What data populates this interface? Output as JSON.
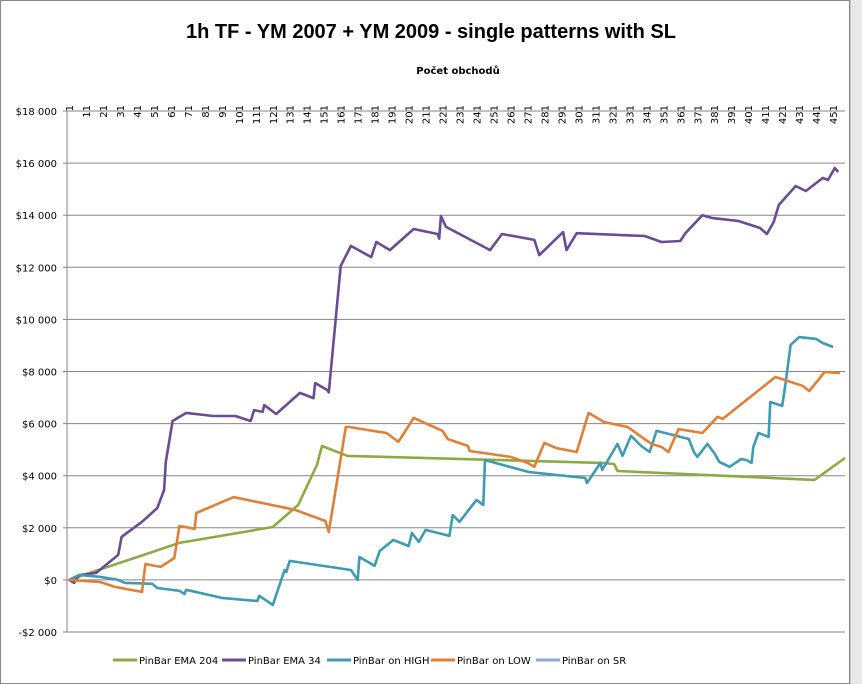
{
  "chart_data": {
    "type": "line",
    "title": "1h TF - YM 2007 + YM 2009 - single patterns with SL",
    "xlabel": "Počet obchodů",
    "ylabel": "",
    "x_axis_position": "top",
    "xlim": [
      1,
      459
    ],
    "x_ticks": [
      1,
      11,
      21,
      31,
      41,
      51,
      61,
      71,
      81,
      91,
      101,
      111,
      121,
      131,
      141,
      151,
      161,
      171,
      181,
      191,
      201,
      211,
      221,
      231,
      241,
      251,
      261,
      271,
      281,
      291,
      301,
      311,
      321,
      331,
      341,
      351,
      361,
      371,
      381,
      391,
      401,
      411,
      421,
      431,
      441,
      451
    ],
    "ylim": [
      -2000,
      18000
    ],
    "y_ticks": [
      -2000,
      0,
      2000,
      4000,
      6000,
      8000,
      10000,
      12000,
      14000,
      16000,
      18000
    ],
    "y_tick_labels": [
      "-$2 000",
      "$0",
      "$2 000",
      "$4 000",
      "$6 000",
      "$8 000",
      "$10 000",
      "$12 000",
      "$14 000",
      "$16 000",
      "$18 000"
    ],
    "negative_color": "#ff0000",
    "grid": "horizontal",
    "legend_position": "bottom",
    "series": [
      {
        "name": "PinBar EMA 204",
        "color": "#8bab45",
        "points": [
          [
            1,
            0
          ],
          [
            66,
            1420
          ],
          [
            121,
            2030
          ],
          [
            136,
            2880
          ],
          [
            147,
            4410
          ],
          [
            150,
            5140
          ],
          [
            165,
            4760
          ],
          [
            315,
            4490
          ],
          [
            322,
            4450
          ],
          [
            324,
            4180
          ],
          [
            440,
            3840
          ],
          [
            458,
            4680
          ]
        ]
      },
      {
        "name": "PinBar EMA 34",
        "color": "#6a4c93",
        "points": [
          [
            1,
            0
          ],
          [
            4,
            -115
          ],
          [
            7,
            190
          ],
          [
            17,
            270
          ],
          [
            30,
            960
          ],
          [
            32,
            1650
          ],
          [
            44,
            2230
          ],
          [
            53,
            2760
          ],
          [
            57,
            3450
          ],
          [
            58,
            4530
          ],
          [
            62,
            6100
          ],
          [
            70,
            6410
          ],
          [
            86,
            6290
          ],
          [
            99,
            6290
          ],
          [
            108,
            6100
          ],
          [
            110,
            6520
          ],
          [
            115,
            6450
          ],
          [
            116,
            6710
          ],
          [
            123,
            6370
          ],
          [
            137,
            7180
          ],
          [
            145,
            6980
          ],
          [
            146,
            7560
          ],
          [
            153,
            7290
          ],
          [
            154,
            7200
          ],
          [
            161,
            12050
          ],
          [
            167,
            12820
          ],
          [
            179,
            12390
          ],
          [
            182,
            12970
          ],
          [
            190,
            12660
          ],
          [
            204,
            13470
          ],
          [
            218,
            13280
          ],
          [
            219,
            13100
          ],
          [
            220,
            13970
          ],
          [
            223,
            13550
          ],
          [
            249,
            12660
          ],
          [
            256,
            13280
          ],
          [
            275,
            13050
          ],
          [
            278,
            12470
          ],
          [
            292,
            13350
          ],
          [
            294,
            12660
          ],
          [
            300,
            13310
          ],
          [
            340,
            13200
          ],
          [
            350,
            12970
          ],
          [
            361,
            13010
          ],
          [
            364,
            13310
          ],
          [
            374,
            14000
          ],
          [
            380,
            13890
          ],
          [
            395,
            13780
          ],
          [
            408,
            13510
          ],
          [
            412,
            13280
          ],
          [
            416,
            13740
          ],
          [
            419,
            14390
          ],
          [
            429,
            15120
          ],
          [
            435,
            14930
          ],
          [
            445,
            15430
          ],
          [
            448,
            15350
          ],
          [
            452,
            15810
          ],
          [
            454,
            15660
          ]
        ]
      },
      {
        "name": "PinBar on HIGH",
        "color": "#3f9bb1",
        "points": [
          [
            1,
            0
          ],
          [
            7,
            190
          ],
          [
            19,
            120
          ],
          [
            30,
            0
          ],
          [
            34,
            -115
          ],
          [
            50,
            -150
          ],
          [
            53,
            -310
          ],
          [
            66,
            -420
          ],
          [
            69,
            -540
          ],
          [
            70,
            -380
          ],
          [
            91,
            -690
          ],
          [
            112,
            -810
          ],
          [
            113,
            -610
          ],
          [
            121,
            -960
          ],
          [
            128,
            380
          ],
          [
            129,
            300
          ],
          [
            131,
            730
          ],
          [
            167,
            380
          ],
          [
            171,
            0
          ],
          [
            172,
            880
          ],
          [
            181,
            540
          ],
          [
            184,
            1110
          ],
          [
            192,
            1530
          ],
          [
            201,
            1300
          ],
          [
            203,
            1800
          ],
          [
            207,
            1460
          ],
          [
            211,
            1920
          ],
          [
            225,
            1690
          ],
          [
            227,
            2490
          ],
          [
            231,
            2230
          ],
          [
            241,
            3070
          ],
          [
            245,
            2880
          ],
          [
            246,
            4600
          ],
          [
            272,
            4140
          ],
          [
            305,
            3910
          ],
          [
            306,
            3720
          ],
          [
            314,
            4490
          ],
          [
            315,
            4220
          ],
          [
            324,
            5220
          ],
          [
            327,
            4760
          ],
          [
            332,
            5530
          ],
          [
            338,
            5140
          ],
          [
            343,
            4910
          ],
          [
            347,
            5720
          ],
          [
            357,
            5560
          ],
          [
            366,
            5410
          ],
          [
            369,
            4910
          ],
          [
            371,
            4720
          ],
          [
            377,
            5220
          ],
          [
            381,
            4870
          ],
          [
            384,
            4530
          ],
          [
            390,
            4340
          ],
          [
            397,
            4640
          ],
          [
            400,
            4600
          ],
          [
            403,
            4490
          ],
          [
            404,
            5100
          ],
          [
            407,
            5640
          ],
          [
            413,
            5490
          ],
          [
            414,
            6830
          ],
          [
            421,
            6680
          ],
          [
            423,
            7560
          ],
          [
            426,
            9020
          ],
          [
            431,
            9320
          ],
          [
            441,
            9250
          ],
          [
            445,
            9090
          ],
          [
            451,
            8940
          ]
        ]
      },
      {
        "name": "PinBar on LOW",
        "color": "#e07f35",
        "points": [
          [
            1,
            0
          ],
          [
            19,
            -80
          ],
          [
            21,
            -115
          ],
          [
            28,
            -270
          ],
          [
            44,
            -460
          ],
          [
            46,
            610
          ],
          [
            55,
            500
          ],
          [
            63,
            840
          ],
          [
            66,
            2070
          ],
          [
            75,
            1960
          ],
          [
            76,
            2570
          ],
          [
            98,
            3180
          ],
          [
            134,
            2690
          ],
          [
            152,
            2260
          ],
          [
            154,
            1840
          ],
          [
            164,
            5870
          ],
          [
            166,
            5870
          ],
          [
            188,
            5640
          ],
          [
            195,
            5300
          ],
          [
            204,
            6220
          ],
          [
            221,
            5720
          ],
          [
            224,
            5410
          ],
          [
            236,
            5140
          ],
          [
            237,
            4950
          ],
          [
            261,
            4720
          ],
          [
            271,
            4490
          ],
          [
            275,
            4340
          ],
          [
            281,
            5260
          ],
          [
            288,
            5060
          ],
          [
            300,
            4910
          ],
          [
            307,
            6410
          ],
          [
            316,
            6060
          ],
          [
            330,
            5870
          ],
          [
            344,
            5220
          ],
          [
            350,
            5100
          ],
          [
            354,
            4910
          ],
          [
            360,
            5790
          ],
          [
            374,
            5640
          ],
          [
            383,
            6260
          ],
          [
            386,
            6180
          ],
          [
            417,
            7790
          ],
          [
            433,
            7450
          ],
          [
            437,
            7250
          ],
          [
            446,
            7980
          ],
          [
            455,
            7940
          ]
        ]
      },
      {
        "name": "PinBar on SR",
        "color": "#8ea9d1",
        "points": []
      }
    ]
  }
}
